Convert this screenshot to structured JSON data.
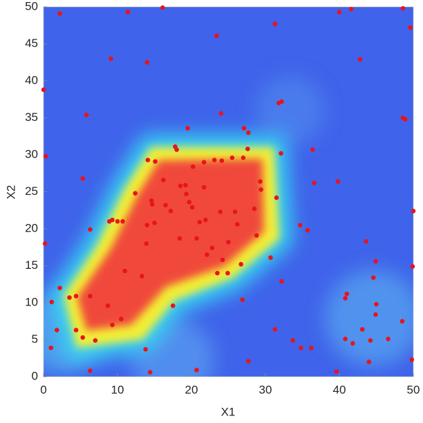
{
  "chart_data": {
    "type": "scatter",
    "xlabel": "X1",
    "ylabel": "X2",
    "xlim": [
      0,
      50
    ],
    "ylim": [
      0,
      50
    ],
    "xticks": [
      0,
      10,
      20,
      30,
      40,
      50
    ],
    "yticks": [
      0,
      5,
      10,
      15,
      20,
      25,
      30,
      35,
      40,
      45,
      50
    ],
    "color": "#e8141b",
    "x": [
      2.2,
      11.4,
      16.1,
      23.4,
      31.3,
      40,
      41.6,
      48.6,
      49.6,
      9.1,
      14,
      42.8,
      0,
      5.8,
      24,
      31.8,
      32.2,
      19.5,
      27.1,
      27.7,
      48.6,
      48.9,
      0.3,
      17.8,
      18,
      27.6,
      32.1,
      36.4,
      5.3,
      39.8,
      36.6,
      31.5,
      12.4,
      6.3,
      8.9,
      9.3,
      10,
      10.7,
      50,
      34.7,
      35.7,
      0.2,
      30.7,
      43.6,
      44.9,
      44.6,
      49.9,
      11,
      13.3,
      32.2,
      2.2,
      26.9,
      17.5,
      1.1,
      3.5,
      4.4,
      6.3,
      8.7,
      9.3,
      10.5,
      1.8,
      4.4,
      31.3,
      1,
      5.3,
      7,
      13.8,
      14.4,
      6.3,
      20.7,
      27.7,
      33.7,
      34.8,
      36.2,
      39.6,
      40.8,
      41.8,
      44,
      44.2,
      46.6,
      49.8,
      48.5,
      41,
      40.8,
      45,
      44.9,
      43.1,
      15.1,
      14.1,
      16.2,
      14.6,
      14.7,
      17.2,
      18.5,
      19.2,
      19.3,
      20.1,
      21.1,
      21.9,
      20.7,
      18.4,
      20.2,
      21.7,
      23.1,
      24.1,
      25.5,
      27,
      29.3,
      29.4,
      28.5,
      25.9,
      23.9,
      26.2,
      25,
      22.8,
      22.1,
      24.2,
      23.5,
      24.9,
      26.7,
      28.8,
      14,
      13.9,
      15,
      16.5,
      19.7,
      21.7
    ],
    "values": [
      49.1,
      49.3,
      49.9,
      46.1,
      47.7,
      49.3,
      49.7,
      49.8,
      47.2,
      43,
      42.5,
      42.9,
      38.8,
      35.4,
      35.6,
      37,
      37.2,
      33.6,
      33.6,
      33,
      35,
      34.8,
      29.8,
      31.1,
      30.7,
      30.8,
      30.2,
      30.7,
      26.8,
      26.4,
      26.2,
      24.2,
      24.8,
      19.9,
      21,
      21.2,
      21,
      21,
      22.4,
      20.5,
      19.8,
      18,
      16.1,
      18.3,
      15.6,
      13.4,
      14.9,
      14.3,
      13.6,
      12.9,
      12,
      10.4,
      9.6,
      10.1,
      10.7,
      10.9,
      10.9,
      9.6,
      7,
      7.8,
      6.3,
      6.3,
      6.4,
      3.9,
      5.3,
      4.9,
      3.7,
      0.6,
      0.8,
      0.9,
      2.1,
      4.9,
      3.9,
      3.9,
      0.7,
      5.1,
      4.5,
      2,
      4.9,
      5.1,
      2.3,
      7.5,
      11.2,
      10.6,
      9.8,
      8.4,
      6.4,
      29.1,
      29.3,
      26.6,
      23.8,
      23.3,
      22.4,
      25.8,
      25.9,
      24.7,
      22.9,
      20.9,
      21.2,
      18.7,
      18.7,
      28.4,
      29,
      29.3,
      29.2,
      29.6,
      29.6,
      26.4,
      25.3,
      22.7,
      22.3,
      22.3,
      20.6,
      18.2,
      17.4,
      16.5,
      15.8,
      14,
      14,
      15.2,
      19.1,
      20.5,
      18,
      20.8,
      23.2,
      23.6,
      25.6
    ]
  }
}
